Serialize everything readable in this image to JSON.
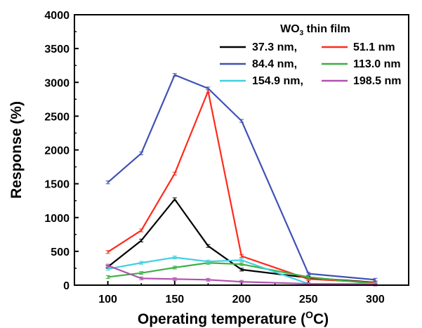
{
  "chart_data": {
    "type": "line",
    "xlabel": "Operating temperature (",
    "xlabel_sup": "O",
    "xlabel_end": "C)",
    "ylabel": "Response (%)",
    "xlim": [
      75,
      325
    ],
    "ylim": [
      0,
      4000
    ],
    "xticks": [
      100,
      150,
      200,
      250,
      300
    ],
    "xtick_labels": [
      "100",
      "150",
      "200",
      "250",
      "300"
    ],
    "yticks": [
      0,
      500,
      1000,
      1500,
      2000,
      2500,
      3000,
      3500,
      4000
    ],
    "ytick_labels": [
      "0",
      "500",
      "1000",
      "1500",
      "2000",
      "2500",
      "3000",
      "3500",
      "4000"
    ],
    "x": [
      100,
      125,
      150,
      175,
      200,
      250,
      300
    ],
    "grid": false,
    "legend_position": "top-right",
    "legend_title": {
      "main": "WO",
      "sub": "3",
      "rest": " thin film"
    },
    "series": [
      {
        "name": "37.3 nm,",
        "color": "#000000",
        "values": [
          270,
          660,
          1270,
          580,
          230,
          110,
          40
        ]
      },
      {
        "name": "51.1 nm",
        "color": "#ff2a1a",
        "values": [
          490,
          810,
          1650,
          2870,
          430,
          90,
          40
        ]
      },
      {
        "name": "84.4 nm,",
        "color": "#3f51b5",
        "values": [
          1520,
          1950,
          3110,
          2910,
          2430,
          170,
          80
        ]
      },
      {
        "name": "113.0 nm",
        "color": "#3cb043",
        "values": [
          120,
          180,
          260,
          330,
          310,
          120,
          20
        ]
      },
      {
        "name": "154.9 nm,",
        "color": "#40d0e0",
        "values": [
          240,
          330,
          410,
          350,
          370,
          20,
          20
        ]
      },
      {
        "name": "198.5 nm",
        "color": "#b050b0",
        "values": [
          290,
          100,
          90,
          80,
          50,
          20,
          10
        ]
      }
    ]
  }
}
